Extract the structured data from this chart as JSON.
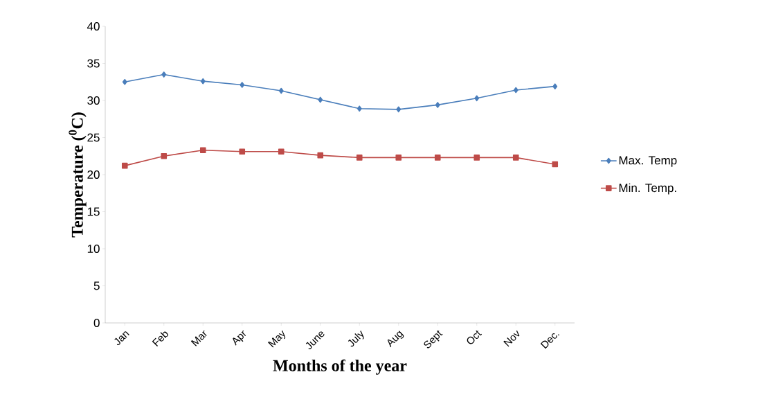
{
  "chart_data": {
    "type": "line",
    "xlabel": "Months of the year",
    "ylabel": "Temperature ($^{0}$C)",
    "categories": [
      "Jan",
      "Feb",
      "Mar",
      "Apr",
      "May",
      "June",
      "July",
      "Aug",
      "Sept",
      "Oct",
      "Nov",
      "Dec."
    ],
    "series": [
      {
        "name": "Max. Temp",
        "color": "#4a7ebb",
        "marker": "diamond",
        "values": [
          32.5,
          33.5,
          32.6,
          32.1,
          31.3,
          30.1,
          28.9,
          28.8,
          29.4,
          30.3,
          31.4,
          31.9
        ]
      },
      {
        "name": "Min. Temp.",
        "color": "#be4b48",
        "marker": "square",
        "values": [
          21.2,
          22.5,
          23.3,
          23.1,
          23.1,
          22.6,
          22.3,
          22.3,
          22.3,
          22.3,
          22.3,
          21.4
        ]
      }
    ],
    "ylim": [
      0,
      40
    ],
    "yticks": [
      0,
      5,
      10,
      15,
      20,
      25,
      30,
      35,
      40
    ],
    "grid": false,
    "legend": "right"
  }
}
